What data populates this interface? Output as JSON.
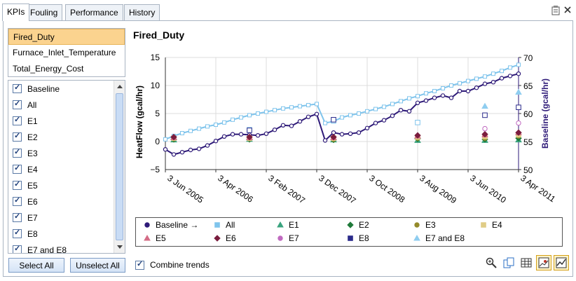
{
  "tabs": [
    "KPIs",
    "Fouling",
    "Performance",
    "History"
  ],
  "kpis": [
    "Fired_Duty",
    "Furnace_Inlet_Temperature",
    "Total_Energy_Cost"
  ],
  "checklist": [
    "Baseline",
    "All",
    "E1",
    "E2",
    "E3",
    "E4",
    "E5",
    "E6",
    "E7",
    "E8",
    "E7 and E8"
  ],
  "buttons": {
    "select_all": "Select All",
    "unselect_all": "Unselect All"
  },
  "combine_label": "Combine trends",
  "legend": [
    {
      "label": "Baseline →",
      "shape": "circle",
      "color": "#2e1a78"
    },
    {
      "label": "All",
      "shape": "square",
      "color": "#7fc4ec"
    },
    {
      "label": "E1",
      "shape": "triangle",
      "color": "#3aa37e"
    },
    {
      "label": "E2",
      "shape": "diamond",
      "color": "#1f7a3a"
    },
    {
      "label": "E3",
      "shape": "circle",
      "color": "#948a2a"
    },
    {
      "label": "E4",
      "shape": "square",
      "color": "#e0cc86"
    },
    {
      "label": "E5",
      "shape": "triangle",
      "color": "#d46c86"
    },
    {
      "label": "E6",
      "shape": "diamond",
      "color": "#7a1d3e"
    },
    {
      "label": "E7",
      "shape": "circle",
      "color": "#c06ac0"
    },
    {
      "label": "E8",
      "shape": "square",
      "color": "#2a2a8a"
    },
    {
      "label": "E7 and E8",
      "shape": "triangle",
      "color": "#8fcdf0"
    }
  ],
  "chart_data": {
    "type": "line",
    "title": "Fired_Duty",
    "ylabel": "HeatFlow (gcal/hr)",
    "y2label": "Baseline (gcal/hr)",
    "ylim": [
      -5,
      15
    ],
    "y2lim": [
      50,
      70
    ],
    "y_ticks": [
      "−5",
      "0",
      "5",
      "10",
      "15"
    ],
    "y2_ticks": [
      "50",
      "55",
      "60",
      "65",
      "70"
    ],
    "x_ticks": [
      "3 Jun 2005",
      "3 Apr 2006",
      "3 Feb 2007",
      "3 Dec 2007",
      "3 Oct 2008",
      "3 Aug 2009",
      "3 Jun 2010",
      "3 Apr 2011"
    ],
    "grid": true,
    "series": [
      {
        "name": "Baseline →",
        "color": "#2e1a78",
        "values": [
          -1.4,
          -2.3,
          -1.9,
          -1.5,
          -1.3,
          -0.7,
          0.1,
          0.9,
          1.3,
          1.3,
          1.2,
          1.1,
          1.4,
          2.1,
          2.9,
          2.8,
          3.6,
          4.4,
          4.9,
          0.2,
          1.6,
          1.3,
          1.4,
          1.6,
          2.4,
          3.3,
          3.8,
          4.6,
          5.6,
          5.4,
          6.9,
          7.3,
          7.8,
          8.2,
          7.8,
          9.0,
          9.0,
          9.6,
          10.3,
          10.6,
          11.3,
          11.7,
          12.1
        ]
      },
      {
        "name": "All",
        "color": "#7fc4ec",
        "values": [
          0.4,
          1.0,
          1.5,
          1.9,
          2.3,
          2.7,
          3.0,
          3.4,
          3.9,
          4.3,
          4.7,
          5.0,
          5.3,
          5.6,
          5.9,
          6.1,
          6.3,
          6.5,
          6.7,
          3.3,
          3.6,
          4.3,
          4.7,
          5.0,
          5.4,
          5.8,
          6.2,
          6.7,
          7.2,
          7.7,
          8.1,
          8.6,
          9.0,
          9.5,
          10.0,
          10.4,
          10.8,
          11.2,
          11.6,
          12.1,
          12.6,
          13.2,
          13.7
        ]
      }
    ],
    "markers": [
      {
        "name": "All",
        "points": [
          [
            1,
            0.5
          ],
          [
            10,
            2.1
          ],
          [
            20,
            3.7
          ],
          [
            30,
            3.4
          ]
        ]
      },
      {
        "name": "E1",
        "points": [
          [
            1,
            0.3
          ],
          [
            10,
            0.4
          ],
          [
            20,
            0.3
          ],
          [
            30,
            0.2
          ],
          [
            38,
            0.2
          ],
          [
            43,
            0.3
          ]
        ]
      },
      {
        "name": "E2",
        "points": [
          [
            1,
            0.4
          ],
          [
            10,
            0.4
          ],
          [
            20,
            0.3
          ],
          [
            30,
            0.5
          ],
          [
            38,
            0.4
          ],
          [
            43,
            0.6
          ]
        ]
      },
      {
        "name": "E3",
        "points": [
          [
            1,
            0.5
          ],
          [
            10,
            0.5
          ],
          [
            20,
            0.4
          ],
          [
            30,
            0.6
          ],
          [
            38,
            0.6
          ],
          [
            43,
            1.0
          ]
        ]
      },
      {
        "name": "E4",
        "points": [
          [
            1,
            0.6
          ],
          [
            10,
            0.6
          ],
          [
            20,
            0.6
          ],
          [
            30,
            0.8
          ],
          [
            38,
            0.9
          ],
          [
            43,
            1.2
          ]
        ]
      },
      {
        "name": "E5",
        "points": [
          [
            1,
            0.7
          ],
          [
            10,
            0.7
          ],
          [
            20,
            0.7
          ],
          [
            30,
            1.0
          ],
          [
            38,
            1.2
          ],
          [
            43,
            1.6
          ]
        ]
      },
      {
        "name": "E6",
        "points": [
          [
            1,
            0.8
          ],
          [
            10,
            0.8
          ],
          [
            20,
            0.8
          ],
          [
            30,
            1.1
          ],
          [
            38,
            1.3
          ],
          [
            43,
            1.6
          ]
        ]
      },
      {
        "name": "E7",
        "points": [
          [
            38,
            2.3
          ],
          [
            43,
            3.3
          ]
        ]
      },
      {
        "name": "E8",
        "points": [
          [
            10,
            2.0
          ],
          [
            20,
            3.9
          ],
          [
            38,
            4.7
          ],
          [
            43,
            6.1
          ]
        ]
      },
      {
        "name": "E7 and E8",
        "points": [
          [
            38,
            6.3
          ],
          [
            43,
            8.8
          ]
        ]
      }
    ]
  }
}
